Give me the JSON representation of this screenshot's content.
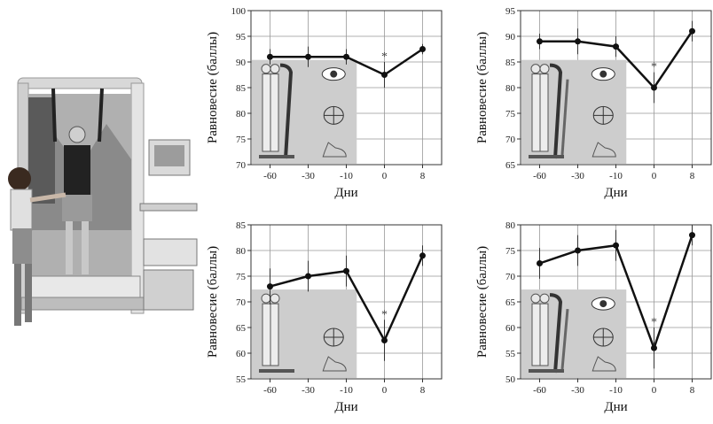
{
  "chart_data": [
    {
      "type": "line",
      "x_categories": [
        "-60",
        "-30",
        "-10",
        "0",
        "8"
      ],
      "xlabel": "Дни",
      "ylabel": "Равновесие (баллы)",
      "ylim": [
        70,
        100
      ],
      "yticks": [
        70,
        75,
        80,
        85,
        90,
        95,
        100
      ],
      "series": [
        {
          "values": [
            91,
            91,
            91,
            87.5,
            92.5
          ],
          "errors": [
            1.5,
            2,
            1.5,
            2.5,
            1
          ]
        }
      ],
      "annotations": [
        {
          "text": "*",
          "category": "0"
        }
      ],
      "grid": true,
      "inset": "foot-support-eyes-vestibular"
    },
    {
      "type": "line",
      "x_categories": [
        "-60",
        "-30",
        "-10",
        "0",
        "8"
      ],
      "xlabel": "Дни",
      "ylabel": "Равновесие (баллы)",
      "ylim": [
        65,
        95
      ],
      "yticks": [
        65,
        70,
        75,
        80,
        85,
        90,
        95
      ],
      "series": [
        {
          "values": [
            89,
            89,
            88,
            80,
            91
          ],
          "errors": [
            1.5,
            2.5,
            2,
            3,
            2
          ]
        }
      ],
      "annotations": [
        {
          "text": "*",
          "category": "0"
        }
      ],
      "grid": true,
      "inset": "sway-support-eyes-vestibular"
    },
    {
      "type": "line",
      "x_categories": [
        "-60",
        "-30",
        "-10",
        "0",
        "8"
      ],
      "xlabel": "Дни",
      "ylabel": "Равновесие (баллы)",
      "ylim": [
        55,
        85
      ],
      "yticks": [
        55,
        60,
        65,
        70,
        75,
        80,
        85
      ],
      "series": [
        {
          "values": [
            73,
            75,
            76,
            62.5,
            79
          ],
          "errors": [
            3.5,
            3,
            3,
            4,
            2
          ]
        }
      ],
      "annotations": [
        {
          "text": "*",
          "category": "0"
        }
      ],
      "grid": true,
      "inset": "eyes-closed-vestibular"
    },
    {
      "type": "line",
      "x_categories": [
        "-60",
        "-30",
        "-10",
        "0",
        "8"
      ],
      "xlabel": "Дни",
      "ylabel": "Равновесие (баллы)",
      "ylim": [
        50,
        80
      ],
      "yticks": [
        50,
        55,
        60,
        65,
        70,
        75,
        80
      ],
      "series": [
        {
          "values": [
            72.5,
            75,
            76,
            56,
            78
          ],
          "errors": [
            3,
            3,
            3,
            4,
            2
          ]
        }
      ],
      "annotations": [
        {
          "text": "*",
          "category": "0"
        }
      ],
      "grid": true,
      "inset": "sway-support-eyes-vestibular"
    }
  ],
  "photo": {
    "subject": "balance-testing-platform"
  }
}
